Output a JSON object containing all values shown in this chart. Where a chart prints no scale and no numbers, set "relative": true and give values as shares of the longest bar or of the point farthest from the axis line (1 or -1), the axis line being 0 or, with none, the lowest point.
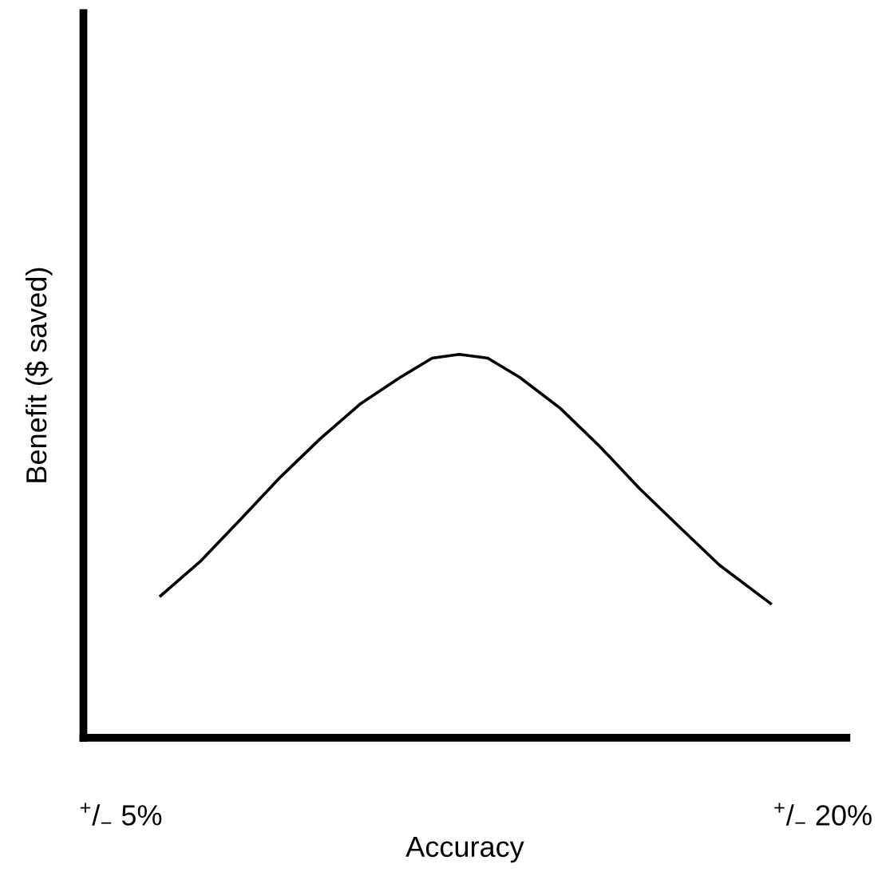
{
  "chart_data": {
    "type": "line",
    "relative": true,
    "xlabel": "Accuracy",
    "ylabel": "Benefit ($ saved)",
    "xlim": [
      4.2,
      20.5
    ],
    "xticks": [
      {
        "value": 5,
        "label": "$^{+}$/$_{−}$ 5%"
      },
      {
        "value": 20,
        "label": "$^{+}$/$_{−}$ 20%"
      }
    ],
    "series": [
      {
        "color": "#000000",
        "x": [
          5.85,
          6.7,
          7.56,
          8.41,
          9.26,
          10.11,
          10.97,
          11.65,
          12.23,
          12.84,
          13.52,
          14.38,
          15.23,
          16.08,
          16.93,
          17.79,
          18.88
        ],
        "values": [
          0.37,
          0.46,
          0.57,
          0.68,
          0.78,
          0.87,
          0.94,
          0.99,
          1.0,
          0.99,
          0.94,
          0.86,
          0.76,
          0.65,
          0.55,
          0.45,
          0.35
        ]
      }
    ]
  }
}
